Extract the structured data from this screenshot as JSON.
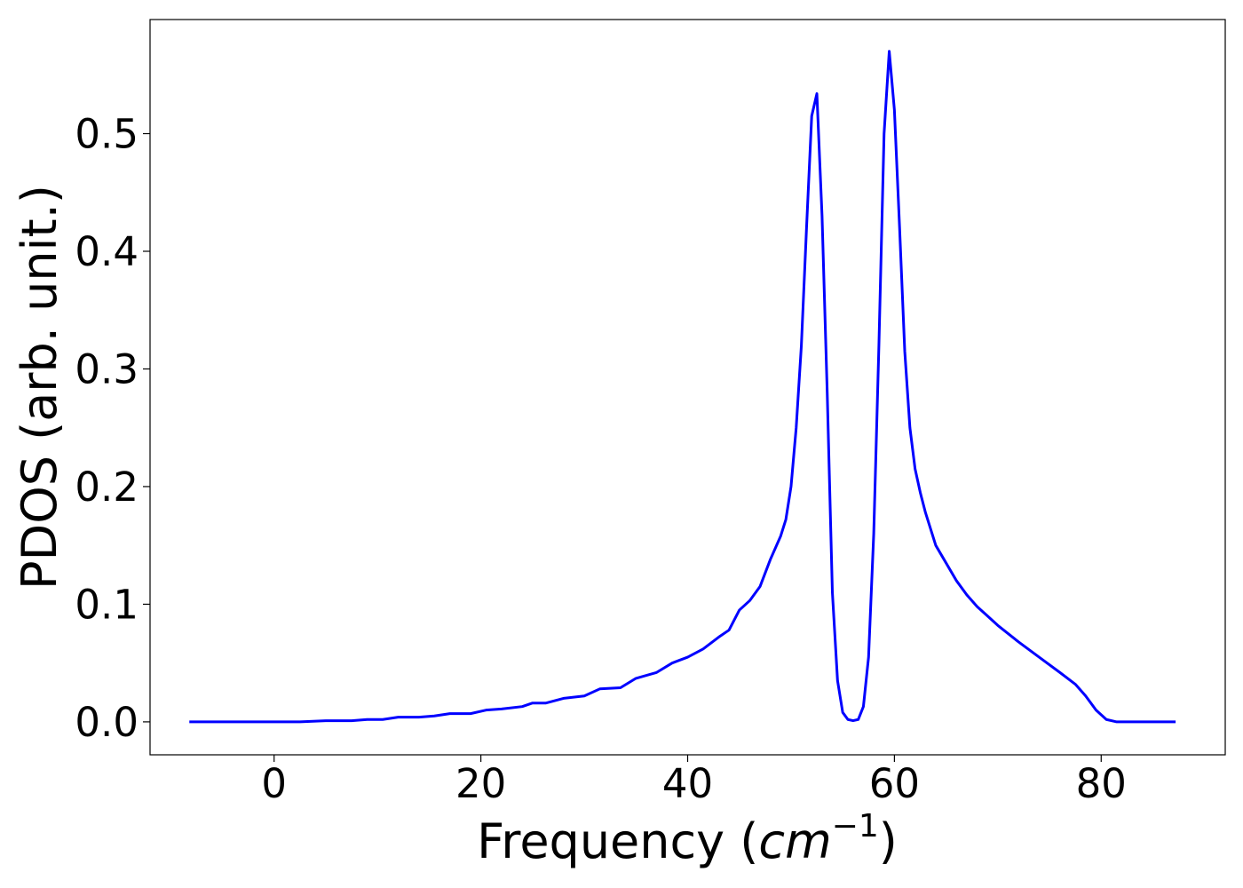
{
  "chart_data": {
    "type": "line",
    "title": "",
    "xlabel": {
      "prefix": "Frequency (",
      "math": "cm",
      "superscript": "−1",
      "suffix": ")"
    },
    "ylabel": "PDOS (arb. unit.)",
    "xlim": [
      -12,
      92
    ],
    "ylim": [
      -0.028,
      0.597
    ],
    "xticks": [
      0,
      20,
      40,
      60,
      80
    ],
    "xtick_labels": [
      "0",
      "20",
      "40",
      "60",
      "80"
    ],
    "yticks": [
      0.0,
      0.1,
      0.2,
      0.3,
      0.4,
      0.5
    ],
    "ytick_labels": [
      "0.0",
      "0.1",
      "0.2",
      "0.3",
      "0.4",
      "0.5"
    ],
    "grid": false,
    "legend": "none",
    "series": [
      {
        "color": "#0000ff",
        "x": [
          -8.2,
          0,
          2.5,
          5,
          7.5,
          9,
          10.5,
          12,
          14,
          15.5,
          17,
          19,
          20.5,
          22,
          24,
          25,
          26.3,
          28,
          30,
          31.5,
          33.5,
          35,
          37,
          38.5,
          40,
          41.5,
          43,
          44,
          45,
          46,
          47,
          48,
          49,
          49.5,
          50,
          50.5,
          51,
          51.5,
          52,
          52.5,
          53,
          53.5,
          54,
          54.5,
          55,
          55.5,
          56,
          56.5,
          57,
          57.5,
          58,
          58.5,
          59,
          59.5,
          60,
          60.5,
          61,
          61.5,
          62,
          62.5,
          63,
          64,
          65,
          66,
          67,
          68,
          69,
          70,
          72,
          74,
          76,
          77.5,
          78.5,
          79.5,
          80.5,
          81.5,
          83,
          85,
          87.2
        ],
        "y": [
          0.0,
          0.0,
          0.0,
          0.001,
          0.001,
          0.002,
          0.002,
          0.004,
          0.004,
          0.005,
          0.007,
          0.007,
          0.01,
          0.011,
          0.013,
          0.016,
          0.016,
          0.02,
          0.022,
          0.028,
          0.029,
          0.037,
          0.042,
          0.05,
          0.055,
          0.062,
          0.072,
          0.078,
          0.095,
          0.103,
          0.115,
          0.138,
          0.158,
          0.172,
          0.2,
          0.25,
          0.32,
          0.42,
          0.515,
          0.534,
          0.43,
          0.28,
          0.11,
          0.035,
          0.008,
          0.002,
          0.001,
          0.002,
          0.013,
          0.055,
          0.16,
          0.32,
          0.5,
          0.57,
          0.52,
          0.42,
          0.315,
          0.25,
          0.215,
          0.195,
          0.178,
          0.15,
          0.135,
          0.12,
          0.108,
          0.098,
          0.09,
          0.082,
          0.068,
          0.055,
          0.042,
          0.032,
          0.022,
          0.01,
          0.002,
          0.0,
          0.0,
          0.0,
          0.0
        ]
      }
    ]
  }
}
